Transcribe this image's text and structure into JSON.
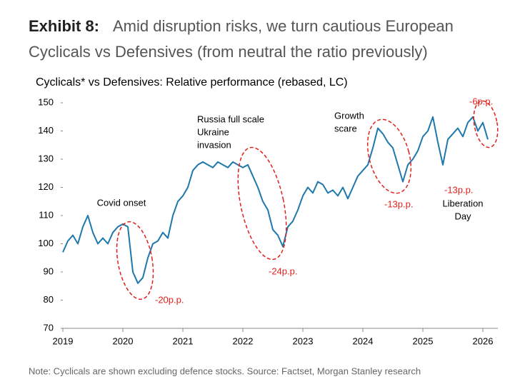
{
  "header": {
    "label": "Exhibit 8:",
    "title_lines": [
      "Amid disruption risks, we turn cautious European",
      "Cyclicals vs Defensives (from neutral the ratio previously)"
    ]
  },
  "chart_data": {
    "type": "line",
    "title": "Cyclicals* vs Defensives: Relative performance (rebased, LC)",
    "x": [
      2019.0,
      2019.083,
      2019.167,
      2019.25,
      2019.333,
      2019.417,
      2019.5,
      2019.583,
      2019.667,
      2019.75,
      2019.833,
      2019.917,
      2020.0,
      2020.083,
      2020.167,
      2020.25,
      2020.333,
      2020.417,
      2020.5,
      2020.583,
      2020.667,
      2020.75,
      2020.833,
      2020.917,
      2021.0,
      2021.083,
      2021.167,
      2021.25,
      2021.333,
      2021.417,
      2021.5,
      2021.583,
      2021.667,
      2021.75,
      2021.833,
      2021.917,
      2022.0,
      2022.083,
      2022.167,
      2022.25,
      2022.333,
      2022.417,
      2022.5,
      2022.583,
      2022.667,
      2022.75,
      2022.833,
      2022.917,
      2023.0,
      2023.083,
      2023.167,
      2023.25,
      2023.333,
      2023.417,
      2023.5,
      2023.583,
      2023.667,
      2023.75,
      2023.833,
      2023.917,
      2024.0,
      2024.083,
      2024.167,
      2024.25,
      2024.333,
      2024.417,
      2024.5,
      2024.583,
      2024.667,
      2024.75,
      2024.833,
      2024.917,
      2025.0,
      2025.083,
      2025.167,
      2025.25,
      2025.333,
      2025.417,
      2025.5,
      2025.583,
      2025.667,
      2025.75,
      2025.833,
      2025.917,
      2026.0,
      2026.083
    ],
    "series": [
      {
        "color": "#1f78ac",
        "values": [
          97,
          101,
          103,
          100,
          106,
          110,
          104,
          100,
          102,
          100,
          104,
          106,
          107,
          106,
          90,
          86,
          88,
          95,
          100,
          101,
          104,
          102,
          110,
          115,
          117,
          120,
          126,
          128,
          129,
          128,
          127,
          129,
          128,
          127,
          129,
          128,
          127,
          128,
          124,
          120,
          115,
          112,
          105,
          103,
          99,
          106,
          108,
          112,
          117,
          120,
          118,
          122,
          121,
          118,
          119,
          117,
          120,
          116,
          120,
          124,
          126,
          128,
          134,
          141,
          139,
          136,
          134,
          128,
          122,
          128,
          130,
          133,
          138,
          140,
          145,
          136,
          128,
          137,
          139,
          141,
          138,
          143,
          145,
          140,
          143,
          137
        ]
      }
    ],
    "xlim": [
      2019,
      2026.25
    ],
    "xticks": [
      2019,
      2020,
      2021,
      2022,
      2023,
      2024,
      2025,
      2026
    ],
    "ylim": [
      70,
      150
    ],
    "yticks": [
      70,
      80,
      90,
      100,
      110,
      120,
      130,
      140,
      150
    ],
    "annotations": [
      [
        "Covid onset"
      ],
      [
        "Russia full scale",
        "Ukraine",
        "invasion"
      ],
      [
        "Growth",
        "scare"
      ],
      [
        "Liberation",
        "Day"
      ],
      [
        "-20p.p."
      ],
      [
        "-24p.p."
      ],
      [
        "-13p.p."
      ],
      [
        "-13p.p."
      ],
      [
        "-6p.p."
      ]
    ]
  },
  "note": "Note: Cyclicals are shown excluding defence stocks. Source: Factset, Morgan Stanley research"
}
